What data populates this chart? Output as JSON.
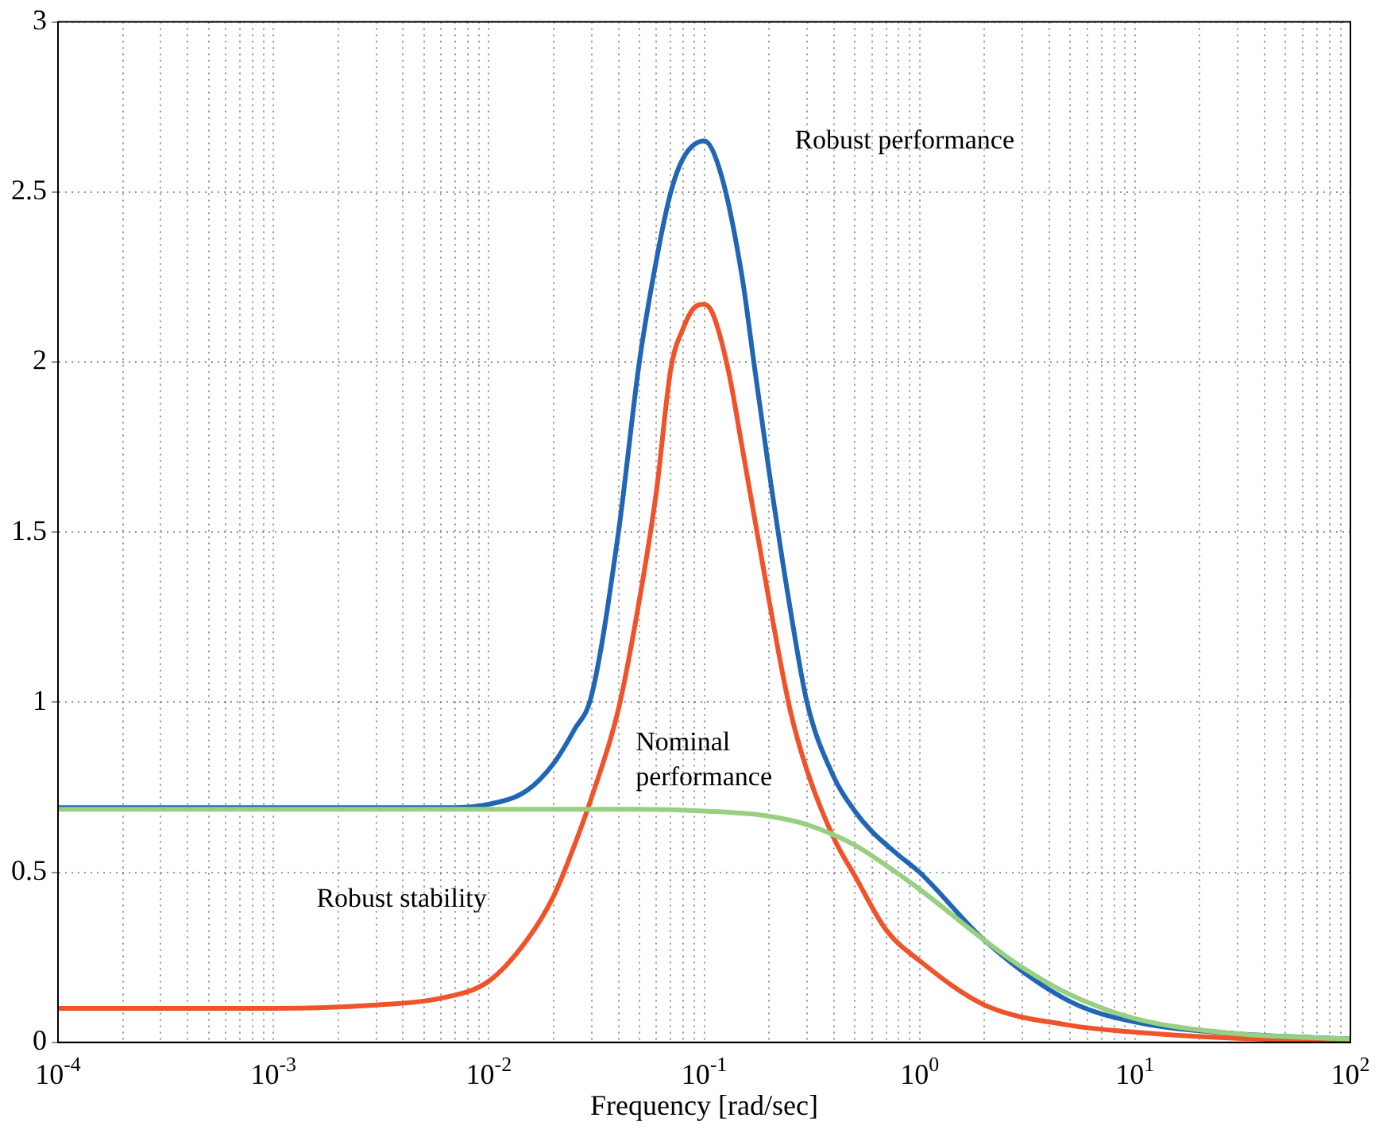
{
  "chart_data": {
    "type": "line",
    "xlabel": "Frequency [rad/sec]",
    "log": "x",
    "grid": true,
    "line_style": "solid",
    "marker": "none",
    "xlim": [
      0.0001,
      100
    ],
    "xticks": [
      {
        "value": 0.0001,
        "label": "10$^{-4}$"
      },
      {
        "value": 0.0002,
        "label": null
      },
      {
        "value": 0.0003,
        "label": null
      },
      {
        "value": 0.0004,
        "label": null
      },
      {
        "value": 0.0005,
        "label": null
      },
      {
        "value": 0.0006,
        "label": null
      },
      {
        "value": 0.0007,
        "label": null
      },
      {
        "value": 0.0008,
        "label": null
      },
      {
        "value": 0.0009,
        "label": null
      },
      {
        "value": 0.001,
        "label": "10$^{-3}$"
      },
      {
        "value": 0.002,
        "label": null
      },
      {
        "value": 0.003,
        "label": null
      },
      {
        "value": 0.004,
        "label": null
      },
      {
        "value": 0.005,
        "label": null
      },
      {
        "value": 0.006,
        "label": null
      },
      {
        "value": 0.007,
        "label": null
      },
      {
        "value": 0.008,
        "label": null
      },
      {
        "value": 0.009,
        "label": null
      },
      {
        "value": 0.01,
        "label": "10$^{-2}$"
      },
      {
        "value": 0.02,
        "label": null
      },
      {
        "value": 0.03,
        "label": null
      },
      {
        "value": 0.04,
        "label": null
      },
      {
        "value": 0.05,
        "label": null
      },
      {
        "value": 0.06,
        "label": null
      },
      {
        "value": 0.07,
        "label": null
      },
      {
        "value": 0.08,
        "label": null
      },
      {
        "value": 0.09,
        "label": null
      },
      {
        "value": 0.1,
        "label": "10$^{-1}$"
      },
      {
        "value": 0.2,
        "label": null
      },
      {
        "value": 0.3,
        "label": null
      },
      {
        "value": 0.4,
        "label": null
      },
      {
        "value": 0.5,
        "label": null
      },
      {
        "value": 0.6,
        "label": null
      },
      {
        "value": 0.7,
        "label": null
      },
      {
        "value": 0.8,
        "label": null
      },
      {
        "value": 0.9,
        "label": null
      },
      {
        "value": 1,
        "label": "10$^{0}$"
      },
      {
        "value": 2,
        "label": null
      },
      {
        "value": 3,
        "label": null
      },
      {
        "value": 4,
        "label": null
      },
      {
        "value": 5,
        "label": null
      },
      {
        "value": 6,
        "label": null
      },
      {
        "value": 7,
        "label": null
      },
      {
        "value": 8,
        "label": null
      },
      {
        "value": 9,
        "label": null
      },
      {
        "value": 10,
        "label": "10$^{1}$"
      },
      {
        "value": 20,
        "label": null
      },
      {
        "value": 30,
        "label": null
      },
      {
        "value": 40,
        "label": null
      },
      {
        "value": 50,
        "label": null
      },
      {
        "value": 60,
        "label": null
      },
      {
        "value": 70,
        "label": null
      },
      {
        "value": 80,
        "label": null
      },
      {
        "value": 90,
        "label": null
      },
      {
        "value": 100,
        "label": "10$^{2}$"
      }
    ],
    "ylim": [
      0,
      3
    ],
    "yticks": [
      0,
      0.5,
      1,
      1.5,
      2,
      2.5,
      3
    ],
    "series": [
      {
        "color": "#98cf80",
        "x": [
          0.0001,
          0.001,
          0.01,
          0.05,
          0.1,
          0.2,
          0.3,
          0.5,
          0.7,
          1,
          2,
          3,
          5,
          10,
          30,
          100
        ],
        "values": [
          0.685,
          0.685,
          0.685,
          0.685,
          0.68,
          0.665,
          0.64,
          0.58,
          0.52,
          0.45,
          0.3,
          0.22,
          0.14,
          0.07,
          0.025,
          0.01
        ]
      },
      {
        "color": "#f0522a",
        "x": [
          0.0001,
          0.001,
          0.003,
          0.006,
          0.01,
          0.015,
          0.02,
          0.025,
          0.03,
          0.04,
          0.05,
          0.06,
          0.07,
          0.08,
          0.09,
          0.1,
          0.11,
          0.13,
          0.15,
          0.2,
          0.25,
          0.3,
          0.4,
          0.5,
          0.7,
          1,
          2,
          5,
          10,
          30,
          100
        ],
        "values": [
          0.1,
          0.1,
          0.11,
          0.13,
          0.18,
          0.3,
          0.43,
          0.58,
          0.72,
          0.98,
          1.3,
          1.62,
          1.98,
          2.1,
          2.16,
          2.17,
          2.14,
          1.97,
          1.75,
          1.3,
          0.98,
          0.8,
          0.6,
          0.49,
          0.33,
          0.24,
          0.11,
          0.05,
          0.03,
          0.012,
          0.005
        ]
      },
      {
        "color": "#2166b5",
        "x": [
          0.0001,
          0.001,
          0.003,
          0.006,
          0.01,
          0.015,
          0.02,
          0.025,
          0.03,
          0.04,
          0.05,
          0.06,
          0.07,
          0.08,
          0.1,
          0.12,
          0.15,
          0.17,
          0.2,
          0.25,
          0.3,
          0.4,
          0.5,
          0.6,
          0.8,
          1,
          2,
          5,
          10,
          30,
          100
        ],
        "values": [
          0.69,
          0.69,
          0.69,
          0.69,
          0.7,
          0.74,
          0.82,
          0.92,
          1.02,
          1.5,
          2.0,
          2.3,
          2.5,
          2.6,
          2.65,
          2.55,
          2.25,
          2.0,
          1.68,
          1.28,
          1.0,
          0.78,
          0.68,
          0.62,
          0.55,
          0.5,
          0.3,
          0.12,
          0.06,
          0.025,
          0.01
        ]
      }
    ],
    "annotations": [
      "Robust performance",
      "Nominal performance",
      "Robust stability"
    ]
  }
}
